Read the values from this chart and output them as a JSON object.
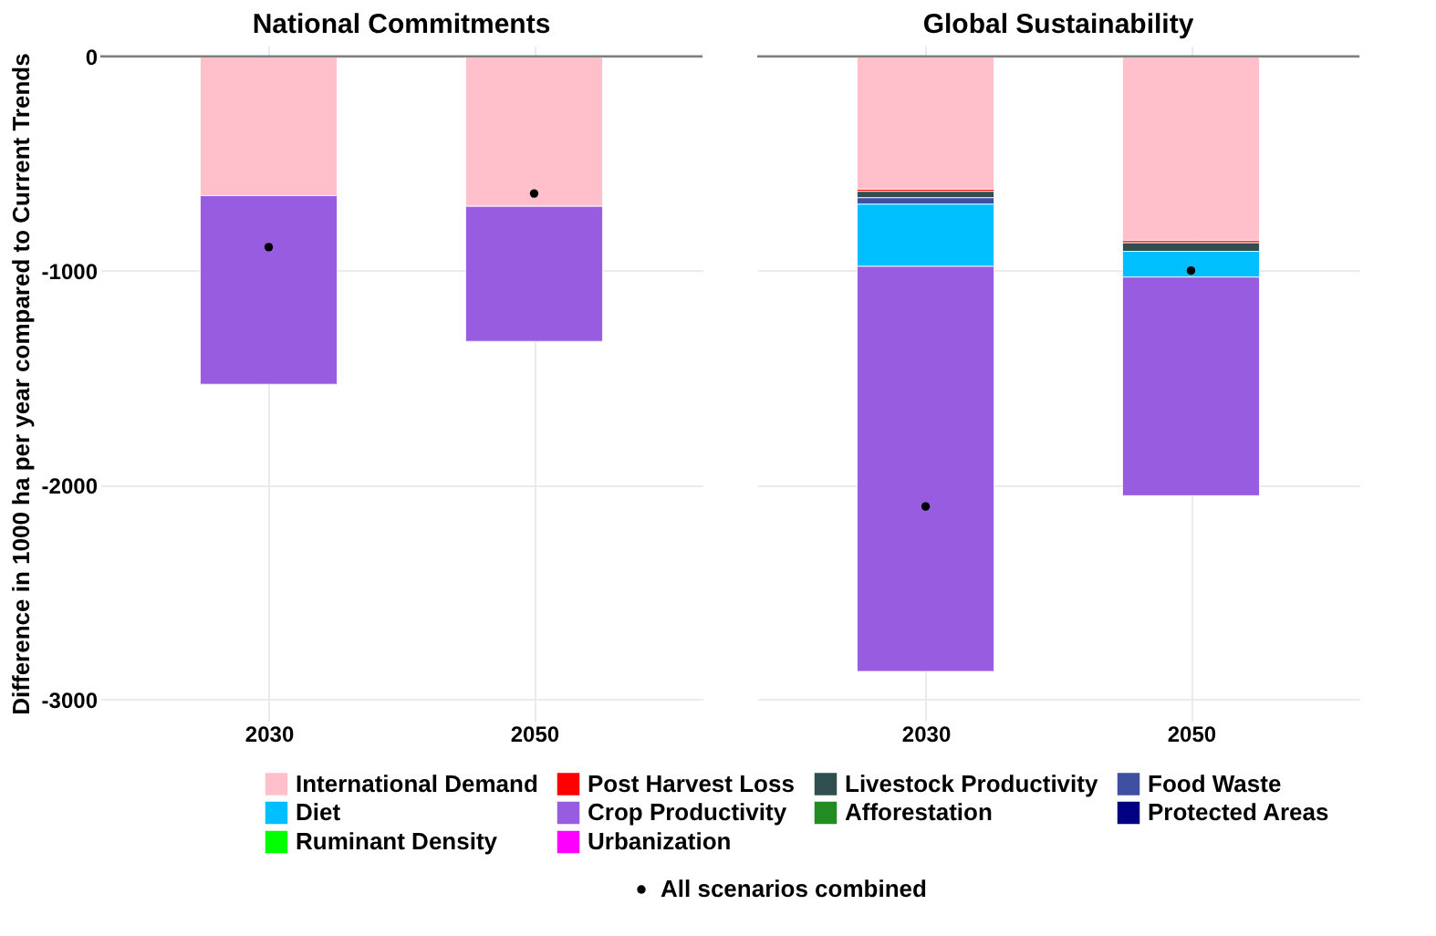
{
  "chart_data": [
    {
      "type": "bar",
      "stacked": true,
      "title": "National Commitments",
      "ylabel": "Difference in 1000 ha per year compared to Current Trends",
      "categories": [
        "2030",
        "2050"
      ],
      "ylim": [
        -3100,
        50
      ],
      "yticks": [
        -3000,
        -2000,
        -1000,
        0
      ],
      "grid": true,
      "ref_lines": [
        {
          "axis": "y",
          "value": 0,
          "color": "#808080"
        }
      ],
      "series": [
        {
          "color": "#ffc0cb",
          "values": [
            -650,
            -700
          ]
        },
        {
          "color": "#985ce0",
          "values": [
            -880,
            -630
          ]
        },
        {
          "type": "scatter",
          "color": "#000000",
          "values": [
            -890,
            -640
          ]
        }
      ]
    },
    {
      "type": "bar",
      "stacked": true,
      "title": "Global Sustainability",
      "categories": [
        "2030",
        "2050"
      ],
      "ylim": [
        -3100,
        50
      ],
      "yticks": [
        -3000,
        -2000,
        -1000,
        0
      ],
      "grid": true,
      "legend": "bottom",
      "tick_labels": "x",
      "ref_lines": [
        {
          "axis": "y",
          "value": 0,
          "color": "#808080"
        }
      ],
      "series": [
        {
          "name": "International Demand",
          "color": "#ffc0cb",
          "values": [
            -620,
            -860
          ]
        },
        {
          "name": "Post Harvest Loss",
          "color": "#ff0000",
          "values": [
            -10,
            -10
          ]
        },
        {
          "name": "Livestock Productivity",
          "color": "#2f4f4f",
          "values": [
            -30,
            -40
          ]
        },
        {
          "name": "Food Waste",
          "color": "#4050a0",
          "values": [
            -30,
            null
          ]
        },
        {
          "name": "Diet",
          "color": "#00bfff",
          "values": [
            -290,
            -120
          ]
        },
        {
          "name": "Crop Productivity",
          "color": "#985ce0",
          "values": [
            -1890,
            -1020
          ]
        },
        {
          "name": "Afforestation",
          "color": "#228b22",
          "values": [
            null,
            null
          ]
        },
        {
          "name": "Protected Areas",
          "color": "#000080",
          "values": [
            null,
            null
          ]
        },
        {
          "name": "Ruminant Density",
          "color": "#00ff00",
          "values": [
            null,
            null
          ]
        },
        {
          "name": "Urbanization",
          "color": "#ff00ff",
          "values": [
            null,
            null
          ]
        },
        {
          "name": "All scenarios combined",
          "type": "scatter",
          "color": "#000000",
          "values": [
            -2100,
            -1000
          ]
        }
      ]
    }
  ]
}
